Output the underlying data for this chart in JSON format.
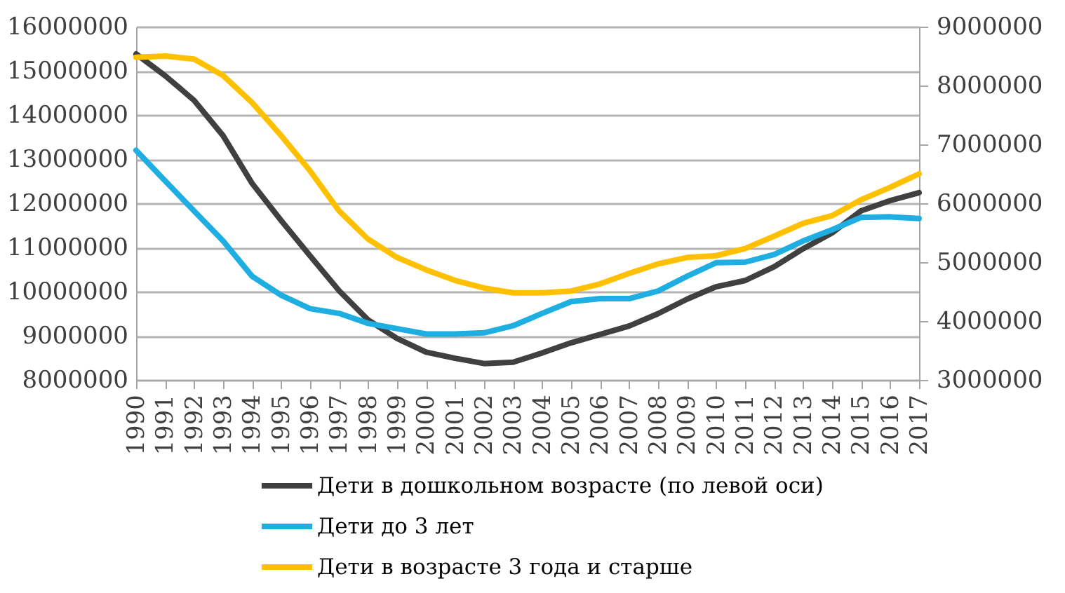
{
  "chart_data": {
    "type": "line",
    "categories": [
      "1990",
      "1991",
      "1992",
      "1993",
      "1994",
      "1995",
      "1996",
      "1997",
      "1998",
      "1999",
      "2000",
      "2001",
      "2002",
      "2003",
      "2004",
      "2005",
      "2006",
      "2007",
      "2008",
      "2009",
      "2010",
      "2011",
      "2012",
      "2013",
      "2014",
      "2015",
      "2016",
      "2017"
    ],
    "series": [
      {
        "name": "Дети в дошкольном возрасте (по левой оси)",
        "color": "#404040",
        "values": [
          15380000,
          14890000,
          14330000,
          13530000,
          12450000,
          11610000,
          10810000,
          10020000,
          9360000,
          8940000,
          8630000,
          8490000,
          8370000,
          8400000,
          8610000,
          8840000,
          9030000,
          9220000,
          9500000,
          9830000,
          10110000,
          10250000,
          10560000,
          10970000,
          11330000,
          11830000,
          12060000,
          12240000
        ]
      },
      {
        "name": "Дети до 3 лет",
        "color": "#1eaee2",
        "axis": "y2",
        "values": [
          6900000,
          6380000,
          5870000,
          5360000,
          4760000,
          4440000,
          4210000,
          4130000,
          3960000,
          3870000,
          3780000,
          3780000,
          3800000,
          3920000,
          4130000,
          4330000,
          4380000,
          4380000,
          4510000,
          4760000,
          4990000,
          5000000,
          5130000,
          5360000,
          5550000,
          5760000,
          5770000,
          5740000
        ]
      },
      {
        "name": "Дети в возрасте 3 года и старше",
        "color": "#ffc000",
        "axis": "y2",
        "values": [
          8480000,
          8500000,
          8450000,
          8170000,
          7710000,
          7150000,
          6550000,
          5870000,
          5390000,
          5080000,
          4870000,
          4690000,
          4560000,
          4480000,
          4480000,
          4510000,
          4630000,
          4810000,
          4970000,
          5080000,
          5110000,
          5230000,
          5440000,
          5660000,
          5790000,
          6060000,
          6270000,
          6500000
        ]
      }
    ],
    "ylim": [
      8000000,
      16000000
    ],
    "yticks": [
      8000000,
      9000000,
      10000000,
      11000000,
      12000000,
      13000000,
      14000000,
      15000000,
      16000000
    ],
    "y2lim": [
      3000000,
      9000000
    ],
    "y2ticks": [
      3000000,
      4000000,
      5000000,
      6000000,
      7000000,
      8000000,
      9000000
    ],
    "grid": "y",
    "legend": "bottom"
  }
}
